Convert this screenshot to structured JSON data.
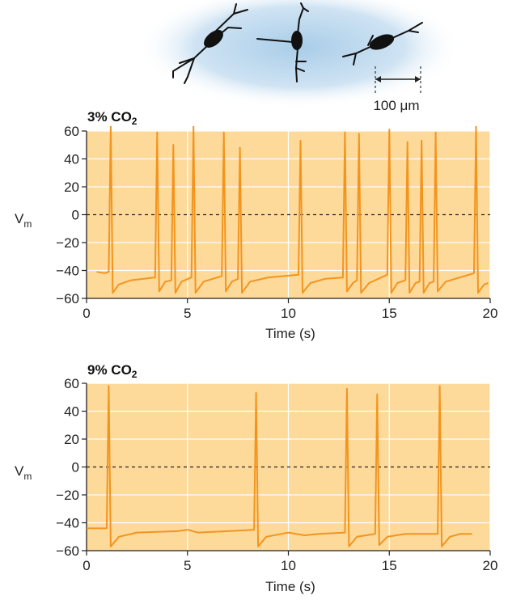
{
  "scale_bar": {
    "label": "100 μm"
  },
  "chart_data": [
    {
      "type": "line",
      "condition": {
        "main": "3% CO",
        "sub": "2"
      },
      "xlabel": "Time (s)",
      "ylabel": {
        "main": "V",
        "sub": "m"
      },
      "xlim": [
        0,
        20
      ],
      "ylim": [
        -60,
        60
      ],
      "x_ticks": [
        "0",
        "5",
        "10",
        "15",
        "20"
      ],
      "y_ticks": [
        "60",
        "40",
        "20",
        "0",
        "−20",
        "−40",
        "−60"
      ],
      "zero_line": "dashed",
      "grid": true,
      "colors": {
        "background": "#fdd99a",
        "trace": "#f2951f",
        "grid": "#ffffff"
      },
      "spike_times": [
        1.2,
        3.5,
        4.3,
        5.3,
        6.8,
        7.6,
        10.6,
        12.8,
        13.5,
        15.0,
        15.9,
        16.6,
        17.3,
        19.3
      ],
      "spike_peaks": [
        63,
        59,
        50,
        63,
        59,
        48,
        53,
        59,
        58,
        61,
        52,
        53,
        59,
        63
      ],
      "series": [
        {
          "points": [
            [
              0.5,
              -41
            ],
            [
              0.9,
              -42
            ],
            [
              1.1,
              -41
            ],
            [
              1.2,
              63
            ],
            [
              1.3,
              -56
            ],
            [
              1.6,
              -50
            ],
            [
              2.2,
              -47
            ],
            [
              3.4,
              -45
            ],
            [
              3.5,
              59
            ],
            [
              3.6,
              -55
            ],
            [
              3.9,
              -48
            ],
            [
              4.2,
              -47
            ],
            [
              4.3,
              50
            ],
            [
              4.4,
              -56
            ],
            [
              4.7,
              -48
            ],
            [
              5.2,
              -45
            ],
            [
              5.3,
              63
            ],
            [
              5.4,
              -56
            ],
            [
              5.8,
              -48
            ],
            [
              6.7,
              -44
            ],
            [
              6.8,
              59
            ],
            [
              6.9,
              -55
            ],
            [
              7.2,
              -48
            ],
            [
              7.5,
              -46
            ],
            [
              7.6,
              48
            ],
            [
              7.7,
              -56
            ],
            [
              8.1,
              -48
            ],
            [
              9.0,
              -45
            ],
            [
              10.5,
              -43
            ],
            [
              10.6,
              53
            ],
            [
              10.7,
              -56
            ],
            [
              11.1,
              -49
            ],
            [
              11.8,
              -46
            ],
            [
              12.7,
              -45
            ],
            [
              12.8,
              59
            ],
            [
              12.9,
              -55
            ],
            [
              13.2,
              -49
            ],
            [
              13.4,
              -47
            ],
            [
              13.5,
              58
            ],
            [
              13.6,
              -56
            ],
            [
              14.0,
              -49
            ],
            [
              14.9,
              -43
            ],
            [
              15.0,
              61
            ],
            [
              15.1,
              -56
            ],
            [
              15.4,
              -49
            ],
            [
              15.8,
              -47
            ],
            [
              15.9,
              52
            ],
            [
              16.0,
              -56
            ],
            [
              16.3,
              -49
            ],
            [
              16.5,
              -48
            ],
            [
              16.6,
              53
            ],
            [
              16.7,
              -56
            ],
            [
              17.0,
              -49
            ],
            [
              17.2,
              -48
            ],
            [
              17.3,
              59
            ],
            [
              17.4,
              -55
            ],
            [
              17.8,
              -48
            ],
            [
              18.5,
              -45
            ],
            [
              19.2,
              -42
            ],
            [
              19.3,
              63
            ],
            [
              19.4,
              -56
            ],
            [
              19.7,
              -50
            ],
            [
              19.9,
              -49
            ]
          ]
        }
      ]
    },
    {
      "type": "line",
      "condition": {
        "main": "9% CO",
        "sub": "2"
      },
      "xlabel": "Time (s)",
      "ylabel": {
        "main": "V",
        "sub": "m"
      },
      "xlim": [
        0,
        20
      ],
      "ylim": [
        -60,
        60
      ],
      "x_ticks": [
        "0",
        "5",
        "10",
        "15",
        "20"
      ],
      "y_ticks": [
        "60",
        "40",
        "20",
        "0",
        "−20",
        "−40",
        "−60"
      ],
      "zero_line": "dashed",
      "grid": true,
      "colors": {
        "background": "#fdd99a",
        "trace": "#f2951f",
        "grid": "#ffffff"
      },
      "spike_times": [
        1.1,
        8.4,
        12.9,
        14.4,
        17.5
      ],
      "spike_peaks": [
        58,
        53,
        56,
        52,
        58
      ],
      "series": [
        {
          "points": [
            [
              0,
              -44
            ],
            [
              1.0,
              -44
            ],
            [
              1.1,
              58
            ],
            [
              1.2,
              -57
            ],
            [
              1.6,
              -50
            ],
            [
              2.5,
              -47
            ],
            [
              4.5,
              -46
            ],
            [
              5.0,
              -45
            ],
            [
              5.5,
              -47
            ],
            [
              7.0,
              -46
            ],
            [
              8.3,
              -45
            ],
            [
              8.4,
              53
            ],
            [
              8.5,
              -57
            ],
            [
              8.9,
              -50
            ],
            [
              10.0,
              -47
            ],
            [
              10.8,
              -49
            ],
            [
              11.5,
              -48
            ],
            [
              12.8,
              -47
            ],
            [
              12.9,
              56
            ],
            [
              13.0,
              -57
            ],
            [
              13.4,
              -50
            ],
            [
              14.3,
              -48
            ],
            [
              14.4,
              52
            ],
            [
              14.5,
              -56
            ],
            [
              14.9,
              -50
            ],
            [
              15.8,
              -48
            ],
            [
              16.5,
              -48
            ],
            [
              17.4,
              -48
            ],
            [
              17.5,
              58
            ],
            [
              17.6,
              -57
            ],
            [
              18.0,
              -50
            ],
            [
              18.5,
              -48
            ],
            [
              19.1,
              -48
            ]
          ]
        }
      ]
    }
  ]
}
